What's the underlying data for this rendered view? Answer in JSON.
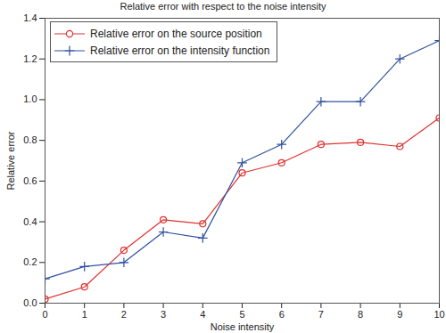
{
  "chart_data": {
    "type": "line",
    "title": "Relative error with respect to the noise intensity",
    "x_label": "Noise intensity",
    "y_label": "Relative error",
    "x": [
      0,
      1,
      2,
      3,
      4,
      5,
      6,
      7,
      8,
      9,
      10
    ],
    "series": [
      {
        "name": "Relative error on the source position",
        "color": "#e03030",
        "marker": "circle",
        "line_style": "solid",
        "values": [
          0.02,
          0.08,
          0.26,
          0.41,
          0.39,
          0.64,
          0.69,
          0.78,
          0.79,
          0.77,
          0.91
        ]
      },
      {
        "name": "Relative error on the intensity function",
        "color": "#3050a0",
        "marker": "plus",
        "line_style": "solid",
        "values": [
          0.12,
          0.18,
          0.2,
          0.35,
          0.32,
          0.69,
          0.78,
          0.99,
          0.99,
          1.2,
          1.29
        ]
      }
    ],
    "xlim": [
      0,
      10
    ],
    "xticks": [
      0,
      1,
      2,
      3,
      4,
      5,
      6,
      7,
      8,
      9,
      10
    ],
    "ylim": [
      0,
      1.4
    ],
    "yticks": [
      {
        "value": 0,
        "label": "0.0"
      },
      0.2,
      0.4,
      0.6,
      0.8,
      {
        "value": 1,
        "label": "1.0"
      },
      1.2,
      1.4
    ],
    "grid": false,
    "legend": "top-left"
  }
}
